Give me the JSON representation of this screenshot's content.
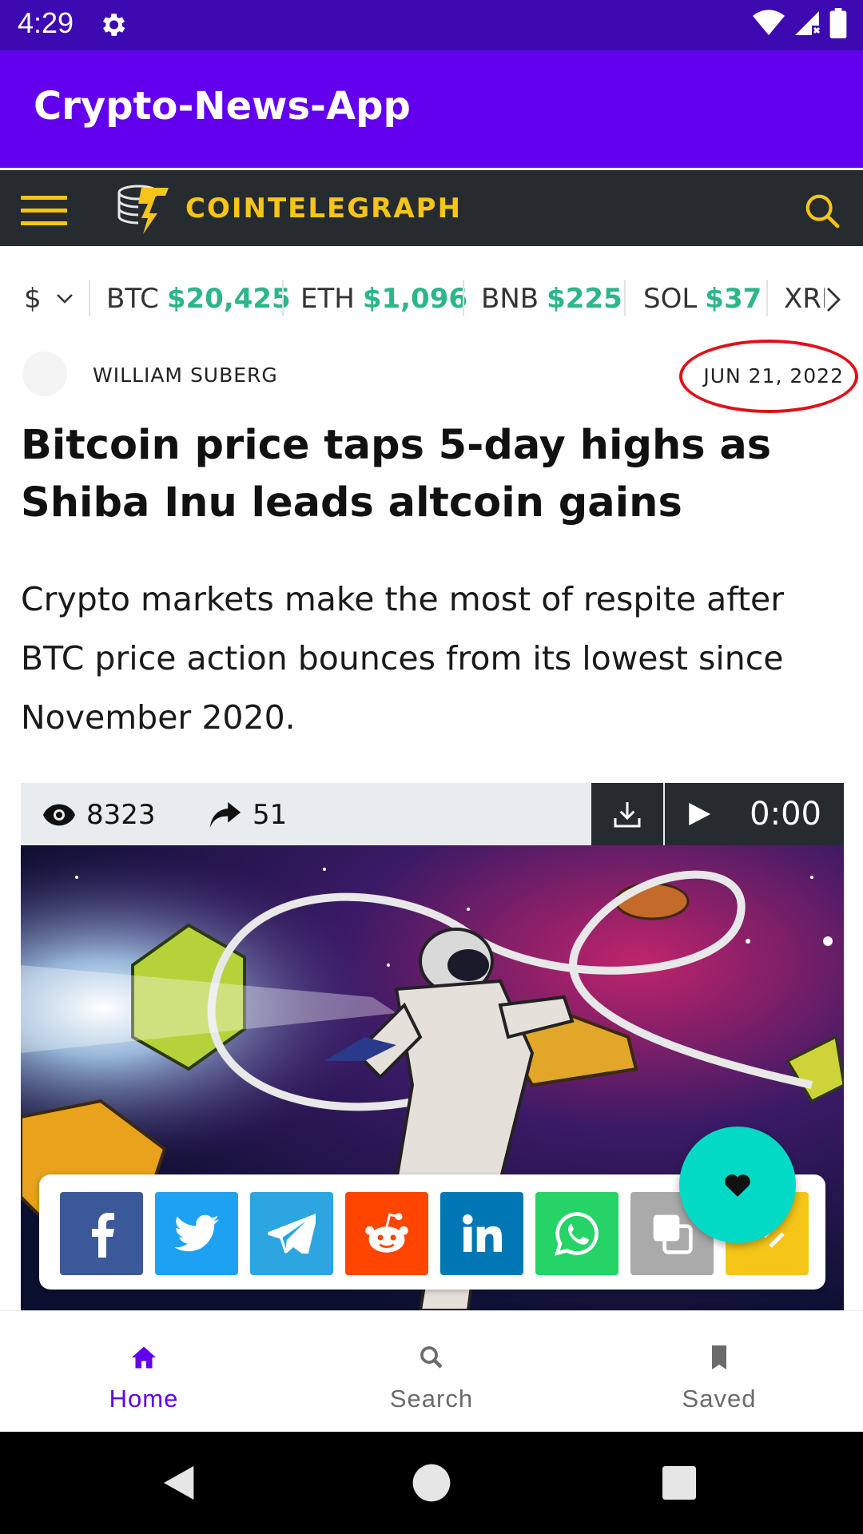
{
  "status_bar": {
    "time": "4:29"
  },
  "app_bar": {
    "title": "Crypto-News-App"
  },
  "site_header": {
    "logo_text": "COINTELEGRAPH"
  },
  "ticker": {
    "currency": "$",
    "items": [
      {
        "symbol": "BTC",
        "price": "$20,425"
      },
      {
        "symbol": "ETH",
        "price": "$1,096"
      },
      {
        "symbol": "BNB",
        "price": "$225"
      },
      {
        "symbol": "SOL",
        "price": "$37"
      },
      {
        "symbol": "XRP",
        "price": ""
      }
    ]
  },
  "article": {
    "author": "WILLIAM SUBERG",
    "date": "JUN 21, 2022",
    "title": "Bitcoin price taps 5-day highs as Shiba Inu leads altcoin gains",
    "lead": "Crypto markets make the most of respite after BTC price action bounces from its lowest since November 2020.",
    "views": "8323",
    "shares": "51",
    "audio_time": "0:00"
  },
  "share_buttons": [
    {
      "name": "facebook",
      "color": "#3b5998"
    },
    {
      "name": "twitter",
      "color": "#1da1f2"
    },
    {
      "name": "telegram",
      "color": "#2ca5e0"
    },
    {
      "name": "reddit",
      "color": "#ff4500"
    },
    {
      "name": "linkedin",
      "color": "#0077b5"
    },
    {
      "name": "whatsapp",
      "color": "#25d366"
    },
    {
      "name": "copy",
      "color": "#aaaaaa"
    },
    {
      "name": "more",
      "color": "#f5c518"
    }
  ],
  "bottom_nav": {
    "items": [
      {
        "label": "Home",
        "active": true
      },
      {
        "label": "Search",
        "active": false
      },
      {
        "label": "Saved",
        "active": false
      }
    ]
  },
  "colors": {
    "status_bar": "#3d0ab2",
    "app_bar": "#6200ee",
    "site_header": "#262b2f",
    "logo_yellow": "#f5c518",
    "price_green": "#2cb689",
    "fab": "#03dac5",
    "annotation_circle": "#e0101a"
  }
}
